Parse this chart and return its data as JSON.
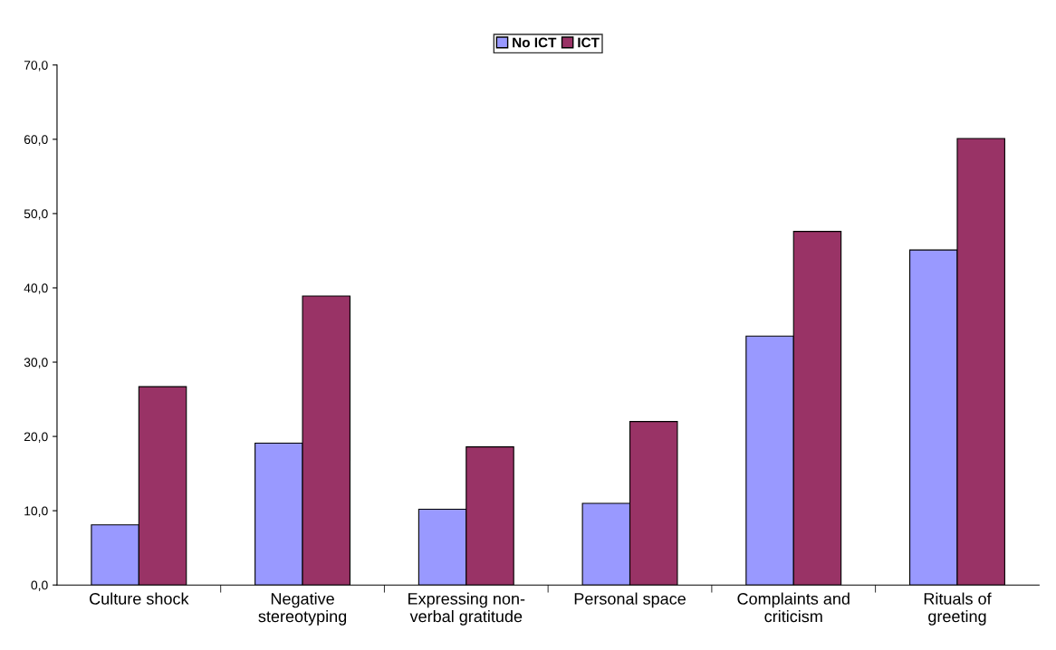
{
  "chart_data": {
    "type": "bar",
    "categories": [
      "Culture shock",
      "Negative\nstereotyping",
      "Expressing non-\nverbal gratitude",
      "Personal space",
      "Complaints and\ncriticism",
      "Rituals of\ngreeting"
    ],
    "series": [
      {
        "name": "No ICT",
        "color": "#9999ff",
        "values": [
          8.1,
          19.1,
          10.2,
          11.0,
          33.5,
          45.1
        ]
      },
      {
        "name": "ICT",
        "color": "#993366",
        "values": [
          26.7,
          38.9,
          18.6,
          22.0,
          47.6,
          60.1
        ]
      }
    ],
    "ylim": [
      0,
      70
    ],
    "yticks": [
      {
        "value": 0,
        "label": "0,0"
      },
      {
        "value": 10,
        "label": "10,0"
      },
      {
        "value": 20,
        "label": "20,0"
      },
      {
        "value": 30,
        "label": "30,0"
      },
      {
        "value": 40,
        "label": "40,0"
      },
      {
        "value": 50,
        "label": "50,0"
      },
      {
        "value": 60,
        "label": "60,0"
      },
      {
        "value": 70,
        "label": "70,0"
      }
    ],
    "grid": false,
    "legend": "top"
  }
}
